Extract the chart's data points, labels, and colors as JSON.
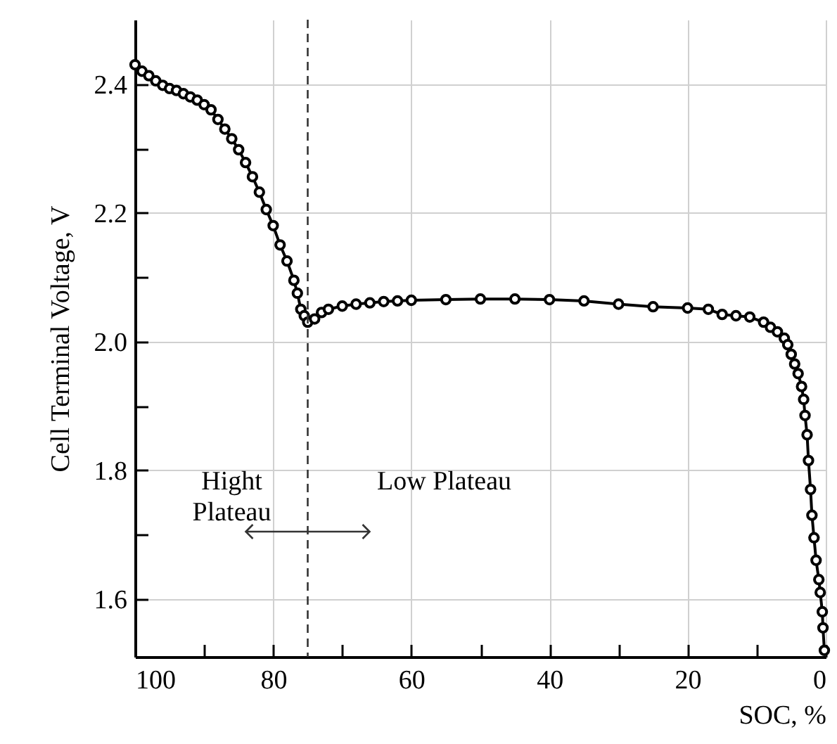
{
  "chart_data": {
    "type": "line",
    "xlabel": "SOC, %",
    "ylabel": "Cell Terminal Voltage, V",
    "xlim": [
      100,
      0
    ],
    "ylim": [
      1.51,
      2.5
    ],
    "xticks": [
      100,
      {
        "value": 90,
        "label": null
      },
      80,
      {
        "value": 70,
        "label": null
      },
      60,
      {
        "value": 50,
        "label": null
      },
      40,
      {
        "value": 30,
        "label": null
      },
      20,
      {
        "value": 10,
        "label": null
      },
      0
    ],
    "yticks": [
      {
        "value": 1.6,
        "label": "1.6"
      },
      {
        "value": 1.7,
        "label": null
      },
      {
        "value": 1.8,
        "label": "1.8"
      },
      {
        "value": 1.9,
        "label": null
      },
      {
        "value": 2.0,
        "label": "2.0"
      },
      {
        "value": 2.1,
        "label": null
      },
      {
        "value": 2.2,
        "label": "2.2"
      },
      {
        "value": 2.3,
        "label": null
      },
      {
        "value": 2.4,
        "label": "2.4"
      }
    ],
    "grid": true,
    "marker": "circle",
    "line_style": "solid",
    "series": [
      {
        "color": "#000000",
        "x": [
          100,
          99,
          98,
          97,
          96,
          95,
          94,
          93,
          92,
          91,
          90,
          89,
          88,
          87,
          86,
          85,
          84,
          83,
          82,
          81,
          80,
          79,
          78,
          77,
          76.5,
          76,
          75.5,
          75,
          74,
          73,
          72,
          70,
          68,
          66,
          64,
          62,
          60,
          55,
          50,
          45,
          40,
          35,
          30,
          25,
          20,
          17,
          15,
          13,
          11,
          9,
          8,
          7,
          6,
          5.5,
          5,
          4.5,
          4,
          3.5,
          3.2,
          3,
          2.7,
          2.5,
          2.2,
          2,
          1.7,
          1.4,
          1,
          0.8,
          0.5,
          0.4,
          0.2
        ],
        "values": [
          2.43,
          2.42,
          2.413,
          2.405,
          2.398,
          2.393,
          2.39,
          2.385,
          2.38,
          2.375,
          2.368,
          2.36,
          2.345,
          2.33,
          2.315,
          2.298,
          2.278,
          2.256,
          2.232,
          2.205,
          2.18,
          2.15,
          2.125,
          2.095,
          2.075,
          2.05,
          2.04,
          2.03,
          2.035,
          2.045,
          2.05,
          2.055,
          2.058,
          2.06,
          2.062,
          2.063,
          2.064,
          2.065,
          2.066,
          2.066,
          2.065,
          2.063,
          2.058,
          2.054,
          2.052,
          2.05,
          2.042,
          2.04,
          2.038,
          2.03,
          2.022,
          2.015,
          2.005,
          1.995,
          1.98,
          1.965,
          1.95,
          1.93,
          1.91,
          1.885,
          1.855,
          1.815,
          1.77,
          1.73,
          1.695,
          1.66,
          1.63,
          1.61,
          1.58,
          1.555,
          1.52
        ]
      }
    ],
    "ref_lines": [
      {
        "axis": "x",
        "value": 75,
        "color": "#333333",
        "line_style": "dashed"
      }
    ],
    "annotations": [
      "Hight\nPlateau",
      "Low Plateau"
    ]
  }
}
